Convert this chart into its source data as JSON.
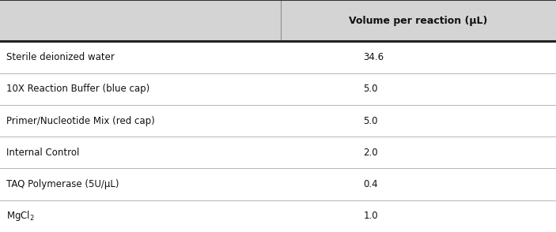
{
  "header_col2": "Volume per reaction (μL)",
  "rows": [
    [
      "Sterile deionized water",
      "34.6"
    ],
    [
      "10X Reaction Buffer (blue cap)",
      "5.0"
    ],
    [
      "Primer/Nucleotide Mix (red cap)",
      "5.0"
    ],
    [
      "Internal Control",
      "2.0"
    ],
    [
      "TAQ Polymerase (5U/μL)",
      "0.4"
    ],
    [
      "MgCl₂",
      "1.0"
    ]
  ],
  "col_split": 0.505,
  "header_bg": "#d4d4d4",
  "row_bg": "#ffffff",
  "header_fontsize": 9.0,
  "cell_fontsize": 8.5,
  "header_line_color": "#333333",
  "row_line_color": "#aaaaaa",
  "text_color": "#111111",
  "fig_width": 7.03,
  "fig_height": 2.94,
  "dpi": 100
}
